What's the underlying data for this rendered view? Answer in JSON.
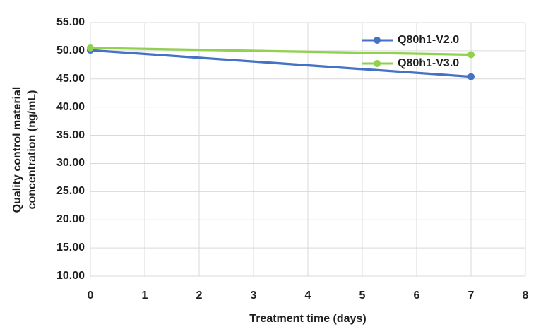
{
  "chart_data": {
    "type": "line",
    "x": [
      0,
      7
    ],
    "series": [
      {
        "name": "Q80h1-V2.0",
        "color": "#4472C4",
        "values": [
          50.1,
          45.4
        ]
      },
      {
        "name": "Q80h1-V3.0",
        "color": "#92D050",
        "values": [
          50.5,
          49.3
        ]
      }
    ],
    "title": "",
    "xlabel": "Treatment time (days)",
    "ylabel": "Quality control material concentration (ng/mL)",
    "ylabel_lines": [
      "Quality control material",
      "concentration (ng/mL)"
    ],
    "xlim": [
      0,
      8
    ],
    "ylim": [
      10,
      55
    ],
    "xticks": [
      "0",
      "1",
      "2",
      "3",
      "4",
      "5",
      "6",
      "7",
      "8"
    ],
    "yticks": [
      "55.00",
      "50.00",
      "45.00",
      "40.00",
      "35.00",
      "30.00",
      "25.00",
      "20.00",
      "15.00",
      "10.00"
    ],
    "grid": "full (horizontal and vertical light-gray gridlines)",
    "legend_position": "inside top-right",
    "colors": {
      "gridline": "#D9D9D9",
      "text": "#1F1F1F",
      "background": "#FFFFFF"
    }
  }
}
